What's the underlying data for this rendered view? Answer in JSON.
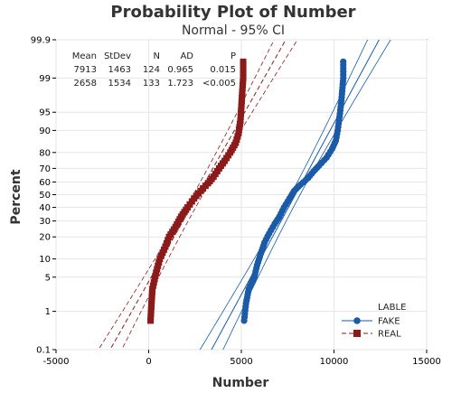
{
  "chart_data": {
    "type": "scatter",
    "title": "Probability Plot of Number",
    "subtitle": "Normal - 95% CI",
    "xlabel": "Number",
    "ylabel": "Percent",
    "xlim": [
      -5000,
      15000
    ],
    "x_ticks": [
      "-5000",
      "0",
      "5000",
      "10000",
      "15000"
    ],
    "x_tick_values": [
      -5000,
      0,
      5000,
      10000,
      15000
    ],
    "y_scale": "normal-probability",
    "ylim": [
      0.1,
      99.9
    ],
    "y_ticks": [
      "0.1",
      "1",
      "5",
      "10",
      "20",
      "30",
      "40",
      "50",
      "60",
      "70",
      "80",
      "90",
      "95",
      "99",
      "99.9"
    ],
    "y_tick_values": [
      0.1,
      1,
      5,
      10,
      20,
      30,
      40,
      50,
      60,
      70,
      80,
      90,
      95,
      99,
      99.9
    ],
    "grid": true,
    "legend": {
      "title": "LABLE",
      "placement": "bottom-right"
    },
    "stats_table": {
      "headers": [
        "Mean",
        "StDev",
        "N",
        "AD",
        "P"
      ],
      "rows": [
        [
          "7913",
          "1463",
          "124",
          "0.965",
          "0.015"
        ],
        [
          "2658",
          "1534",
          "133",
          "1.723",
          "<0.005"
        ]
      ]
    },
    "series": [
      {
        "name": "FAKE",
        "marker": "circle",
        "line": "solid",
        "color": "#1a5aa6",
        "mean": 7913,
        "stdev": 1463,
        "n": 124,
        "points": [
          {
            "x": 5150,
            "p": 0.6
          },
          {
            "x": 5250,
            "p": 1.5
          },
          {
            "x": 5400,
            "p": 3
          },
          {
            "x": 5700,
            "p": 5
          },
          {
            "x": 5850,
            "p": 8
          },
          {
            "x": 6050,
            "p": 12
          },
          {
            "x": 6250,
            "p": 17
          },
          {
            "x": 6500,
            "p": 22
          },
          {
            "x": 6800,
            "p": 28
          },
          {
            "x": 7050,
            "p": 33
          },
          {
            "x": 7300,
            "p": 40
          },
          {
            "x": 7600,
            "p": 47
          },
          {
            "x": 7850,
            "p": 53
          },
          {
            "x": 8200,
            "p": 58
          },
          {
            "x": 8600,
            "p": 63
          },
          {
            "x": 8900,
            "p": 68
          },
          {
            "x": 9200,
            "p": 72
          },
          {
            "x": 9600,
            "p": 77
          },
          {
            "x": 9900,
            "p": 82
          },
          {
            "x": 10100,
            "p": 86
          },
          {
            "x": 10200,
            "p": 90
          },
          {
            "x": 10300,
            "p": 94
          },
          {
            "x": 10400,
            "p": 97
          },
          {
            "x": 10500,
            "p": 99
          },
          {
            "x": 10500,
            "p": 99.6
          }
        ]
      },
      {
        "name": "REAL",
        "marker": "square",
        "line": "dashed",
        "color": "#8b1a1a",
        "mean": 2658,
        "stdev": 1534,
        "n": 133,
        "points": [
          {
            "x": 100,
            "p": 0.6
          },
          {
            "x": 150,
            "p": 1.5
          },
          {
            "x": 200,
            "p": 3
          },
          {
            "x": 400,
            "p": 6
          },
          {
            "x": 600,
            "p": 10
          },
          {
            "x": 900,
            "p": 15
          },
          {
            "x": 1100,
            "p": 20
          },
          {
            "x": 1450,
            "p": 26
          },
          {
            "x": 1750,
            "p": 33
          },
          {
            "x": 2100,
            "p": 40
          },
          {
            "x": 2450,
            "p": 47
          },
          {
            "x": 2800,
            "p": 53
          },
          {
            "x": 3200,
            "p": 59
          },
          {
            "x": 3500,
            "p": 64
          },
          {
            "x": 3800,
            "p": 70
          },
          {
            "x": 4100,
            "p": 75
          },
          {
            "x": 4400,
            "p": 80
          },
          {
            "x": 4700,
            "p": 85
          },
          {
            "x": 4850,
            "p": 89
          },
          {
            "x": 4950,
            "p": 93
          },
          {
            "x": 5000,
            "p": 96
          },
          {
            "x": 5050,
            "p": 98
          },
          {
            "x": 5100,
            "p": 99
          },
          {
            "x": 5100,
            "p": 99.6
          }
        ]
      }
    ]
  }
}
